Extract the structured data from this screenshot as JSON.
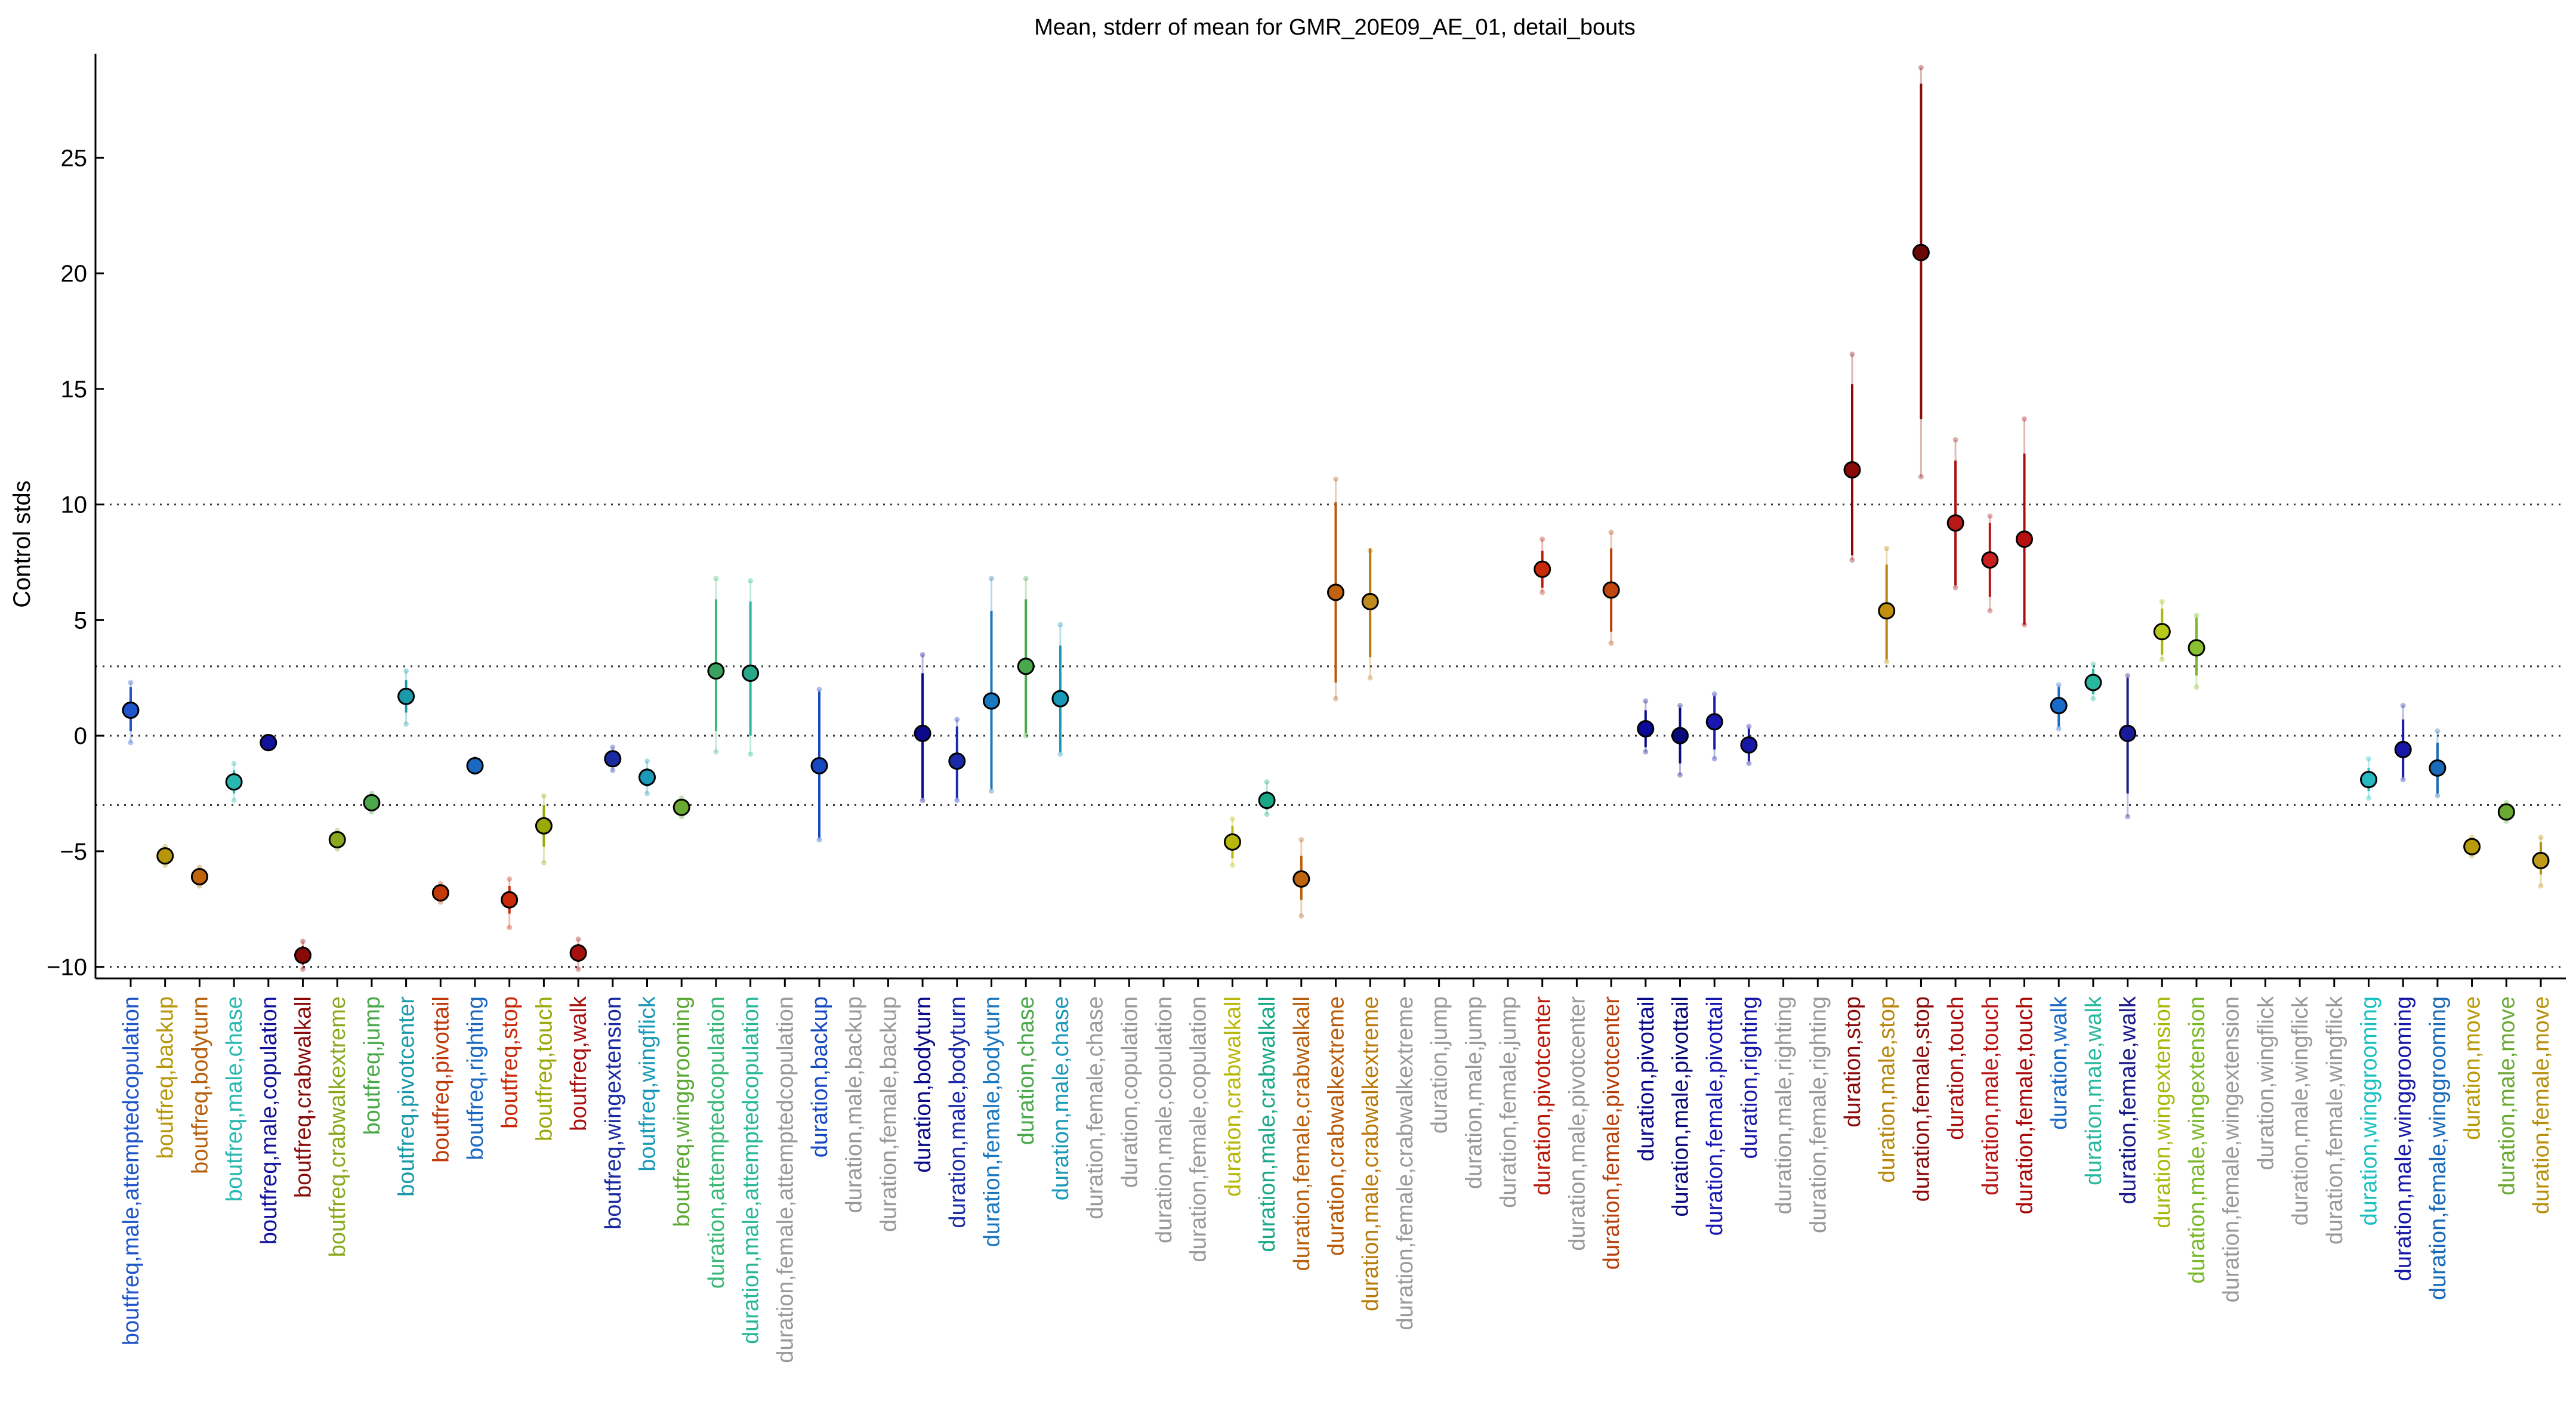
{
  "chart_data": {
    "type": "scatter",
    "title": "Mean, stderr of mean for GMR_20E09_AE_01, detail_bouts",
    "xlabel": "",
    "ylabel": "Control stds",
    "ylim": [
      -10.5,
      29.5
    ],
    "yticks": [
      -10,
      -5,
      0,
      5,
      10,
      15,
      20,
      25
    ],
    "ytick_labels": [
      "−10",
      "−5",
      "0",
      "5",
      "10",
      "15",
      "20",
      "25"
    ],
    "hlines": [
      -10,
      -3,
      0,
      3,
      10
    ],
    "grid": false,
    "legend": "none",
    "points": [
      {
        "label": "boutfreq,male,attemptedcopulation",
        "mean": 1.1,
        "se_lo": 0.2,
        "se_hi": 2.1,
        "ci_lo": -0.3,
        "ci_hi": 2.3,
        "color": "#1f55c8",
        "fill": "#1f55c8"
      },
      {
        "label": "boutfreq,backup",
        "mean": -5.2,
        "se_lo": -5.4,
        "se_hi": -5.0,
        "ci_lo": -5.6,
        "ci_hi": -4.8,
        "color": "#b8960a",
        "fill": "#b8960a"
      },
      {
        "label": "boutfreq,bodyturn",
        "mean": -6.1,
        "se_lo": -6.3,
        "se_hi": -5.9,
        "ci_lo": -6.5,
        "ci_hi": -5.7,
        "color": "#b8600e",
        "fill": "#c0640e"
      },
      {
        "label": "boutfreq,male,chase",
        "mean": -2.0,
        "se_lo": -2.5,
        "se_hi": -1.5,
        "ci_lo": -2.8,
        "ci_hi": -1.2,
        "color": "#28b8b0",
        "fill": "#28b8b0"
      },
      {
        "label": "boutfreq,male,copulation",
        "mean": -0.3,
        "se_lo": -0.4,
        "se_hi": -0.2,
        "ci_lo": -0.5,
        "ci_hi": -0.1,
        "color": "#12129a",
        "fill": "#12129a"
      },
      {
        "label": "boutfreq,crabwalkall",
        "mean": -9.5,
        "se_lo": -9.9,
        "se_hi": -9.1,
        "ci_lo": -10.1,
        "ci_hi": -8.9,
        "color": "#8a0a0a",
        "fill": "#8a0a0a"
      },
      {
        "label": "boutfreq,crabwalkextreme",
        "mean": -4.5,
        "se_lo": -4.7,
        "se_hi": -4.3,
        "ci_lo": -4.9,
        "ci_hi": -4.1,
        "color": "#8aa81e",
        "fill": "#8aa81e"
      },
      {
        "label": "boutfreq,jump",
        "mean": -2.9,
        "se_lo": -3.1,
        "se_hi": -2.7,
        "ci_lo": -3.3,
        "ci_hi": -2.5,
        "color": "#4aa84a",
        "fill": "#4aa84a"
      },
      {
        "label": "boutfreq,pivotcenter",
        "mean": 1.7,
        "se_lo": 1.0,
        "se_hi": 2.4,
        "ci_lo": 0.5,
        "ci_hi": 2.8,
        "color": "#1a9aa8",
        "fill": "#1a9aa8"
      },
      {
        "label": "boutfreq,pivottail",
        "mean": -6.8,
        "se_lo": -7.0,
        "se_hi": -6.6,
        "ci_lo": -7.2,
        "ci_hi": -6.4,
        "color": "#c03a0a",
        "fill": "#c03a0a"
      },
      {
        "label": "boutfreq,righting",
        "mean": -1.3,
        "se_lo": -1.5,
        "se_hi": -1.1,
        "ci_lo": -1.6,
        "ci_hi": -1.0,
        "color": "#1a68c0",
        "fill": "#1a68c0"
      },
      {
        "label": "boutfreq,stop",
        "mean": -7.1,
        "se_lo": -7.7,
        "se_hi": -6.5,
        "ci_lo": -8.3,
        "ci_hi": -6.2,
        "color": "#c82a0a",
        "fill": "#c82a0a"
      },
      {
        "label": "boutfreq,touch",
        "mean": -3.9,
        "se_lo": -4.8,
        "se_hi": -3.0,
        "ci_lo": -5.5,
        "ci_hi": -2.6,
        "color": "#9aa80a",
        "fill": "#9aa80a"
      },
      {
        "label": "boutfreq,walk",
        "mean": -9.4,
        "se_lo": -9.8,
        "se_hi": -9.0,
        "ci_lo": -10.1,
        "ci_hi": -8.8,
        "color": "#a81010",
        "fill": "#a81010"
      },
      {
        "label": "boutfreq,wingextension",
        "mean": -1.0,
        "se_lo": -1.3,
        "se_hi": -0.7,
        "ci_lo": -1.5,
        "ci_hi": -0.5,
        "color": "#1a2aa0",
        "fill": "#1a2aa0"
      },
      {
        "label": "boutfreq,wingflick",
        "mean": -1.8,
        "se_lo": -2.2,
        "se_hi": -1.4,
        "ci_lo": -2.5,
        "ci_hi": -1.1,
        "color": "#1a9ab8",
        "fill": "#1a9ab8"
      },
      {
        "label": "boutfreq,winggrooming",
        "mean": -3.1,
        "se_lo": -3.3,
        "se_hi": -2.9,
        "ci_lo": -3.5,
        "ci_hi": -2.7,
        "color": "#5aa832",
        "fill": "#6aaa32"
      },
      {
        "label": "duration,attemptedcopulation",
        "mean": 2.8,
        "se_lo": 0.2,
        "se_hi": 5.9,
        "ci_lo": -0.7,
        "ci_hi": 6.8,
        "color": "#3ab878",
        "fill": "#3aa060"
      },
      {
        "label": "duration,male,attemptedcopulation",
        "mean": 2.7,
        "se_lo": 0.0,
        "se_hi": 5.8,
        "ci_lo": -0.8,
        "ci_hi": 6.7,
        "color": "#28b898",
        "fill": "#28a888"
      },
      {
        "label": "duration,female,attemptedcopulation",
        "mean": null,
        "color": "#999999"
      },
      {
        "label": "duration,backup",
        "mean": -1.3,
        "se_lo": -4.4,
        "se_hi": 1.9,
        "ci_lo": -4.5,
        "ci_hi": 2.0,
        "color": "#1848c0",
        "fill": "#1848c0"
      },
      {
        "label": "duration,male,backup",
        "mean": null,
        "color": "#999999"
      },
      {
        "label": "duration,female,backup",
        "mean": null,
        "color": "#999999"
      },
      {
        "label": "duration,bodyturn",
        "mean": 0.1,
        "se_lo": -2.7,
        "se_hi": 2.7,
        "ci_lo": -2.8,
        "ci_hi": 3.5,
        "color": "#0a0a8a",
        "fill": "#0a0a8a"
      },
      {
        "label": "duration,male,bodyturn",
        "mean": -1.1,
        "se_lo": -2.7,
        "se_hi": 0.4,
        "ci_lo": -2.8,
        "ci_hi": 0.7,
        "color": "#1a2aa8",
        "fill": "#1a2aa8"
      },
      {
        "label": "duration,female,bodyturn",
        "mean": 1.5,
        "se_lo": -2.3,
        "se_hi": 5.4,
        "ci_lo": -2.4,
        "ci_hi": 6.8,
        "color": "#1a78c0",
        "fill": "#1a78c0"
      },
      {
        "label": "duration,chase",
        "mean": 3.0,
        "se_lo": 0.1,
        "se_hi": 5.9,
        "ci_lo": 0.0,
        "ci_hi": 6.8,
        "color": "#4aa84a",
        "fill": "#4aa84a"
      },
      {
        "label": "duration,male,chase",
        "mean": 1.6,
        "se_lo": -0.7,
        "se_hi": 3.9,
        "ci_lo": -0.8,
        "ci_hi": 4.8,
        "color": "#1a98b8",
        "fill": "#1a98b8"
      },
      {
        "label": "duration,female,chase",
        "mean": null,
        "color": "#999999"
      },
      {
        "label": "duration,copulation",
        "mean": null,
        "color": "#999999"
      },
      {
        "label": "duration,male,copulation",
        "mean": null,
        "color": "#999999"
      },
      {
        "label": "duration,female,copulation",
        "mean": null,
        "color": "#999999"
      },
      {
        "label": "duration,crabwalkall",
        "mean": -4.6,
        "se_lo": -5.3,
        "se_hi": -3.9,
        "ci_lo": -5.6,
        "ci_hi": -3.6,
        "color": "#b8b80a",
        "fill": "#b8b80a"
      },
      {
        "label": "duration,male,crabwalkall",
        "mean": -2.8,
        "se_lo": -3.2,
        "se_hi": -2.4,
        "ci_lo": -3.4,
        "ci_hi": -2.0,
        "color": "#18a888",
        "fill": "#18a888"
      },
      {
        "label": "duration,female,crabwalkall",
        "mean": -6.2,
        "se_lo": -7.1,
        "se_hi": -5.2,
        "ci_lo": -7.8,
        "ci_hi": -4.5,
        "color": "#b8600e",
        "fill": "#c0640e"
      },
      {
        "label": "duration,crabwalkextreme",
        "mean": 6.2,
        "se_lo": 2.3,
        "se_hi": 10.1,
        "ci_lo": 1.6,
        "ci_hi": 11.1,
        "color": "#b85a0a",
        "fill": "#c0620e"
      },
      {
        "label": "duration,male,crabwalkextreme",
        "mean": 5.8,
        "se_lo": 3.4,
        "se_hi": 8.1,
        "ci_lo": 2.5,
        "ci_hi": 8.0,
        "color": "#b87a0a",
        "fill": "#c08a1e"
      },
      {
        "label": "duration,female,crabwalkextreme",
        "mean": null,
        "color": "#999999"
      },
      {
        "label": "duration,jump",
        "mean": null,
        "color": "#999999"
      },
      {
        "label": "duration,male,jump",
        "mean": null,
        "color": "#999999"
      },
      {
        "label": "duration,female,jump",
        "mean": null,
        "color": "#999999"
      },
      {
        "label": "duration,pivotcenter",
        "mean": 7.2,
        "se_lo": 6.4,
        "se_hi": 8.0,
        "ci_lo": 6.2,
        "ci_hi": 8.5,
        "color": "#b81a0a",
        "fill": "#c82a0a"
      },
      {
        "label": "duration,male,pivotcenter",
        "mean": null,
        "color": "#999999"
      },
      {
        "label": "duration,female,pivotcenter",
        "mean": 6.3,
        "se_lo": 4.5,
        "se_hi": 8.1,
        "ci_lo": 4.0,
        "ci_hi": 8.8,
        "color": "#b8400a",
        "fill": "#c0480e"
      },
      {
        "label": "duration,pivottail",
        "mean": 0.3,
        "se_lo": -0.5,
        "se_hi": 1.1,
        "ci_lo": -0.7,
        "ci_hi": 1.5,
        "color": "#0a0a8a",
        "fill": "#0a0a9a"
      },
      {
        "label": "duration,male,pivottail",
        "mean": 0.0,
        "se_lo": -1.2,
        "se_hi": 1.2,
        "ci_lo": -1.7,
        "ci_hi": 1.3,
        "color": "#0a0a7a",
        "fill": "#0a0a7a"
      },
      {
        "label": "duration,female,pivottail",
        "mean": 0.6,
        "se_lo": -0.6,
        "se_hi": 1.7,
        "ci_lo": -1.0,
        "ci_hi": 1.8,
        "color": "#1818b0",
        "fill": "#1818b0"
      },
      {
        "label": "duration,righting",
        "mean": -0.4,
        "se_lo": -1.1,
        "se_hi": 0.3,
        "ci_lo": -1.2,
        "ci_hi": 0.4,
        "color": "#1818a8",
        "fill": "#1818a8"
      },
      {
        "label": "duration,male,righting",
        "mean": null,
        "color": "#999999"
      },
      {
        "label": "duration,female,righting",
        "mean": null,
        "color": "#999999"
      },
      {
        "label": "duration,stop",
        "mean": 11.5,
        "se_lo": 7.8,
        "se_hi": 15.2,
        "ci_lo": 7.6,
        "ci_hi": 16.5,
        "color": "#8a0a0a",
        "fill": "#8a0a0a"
      },
      {
        "label": "duration,male,stop",
        "mean": 5.4,
        "se_lo": 3.3,
        "se_hi": 7.4,
        "ci_lo": 3.2,
        "ci_hi": 8.1,
        "color": "#b8860a",
        "fill": "#c0900e"
      },
      {
        "label": "duration,female,stop",
        "mean": 20.9,
        "se_lo": 13.7,
        "se_hi": 28.2,
        "ci_lo": 11.2,
        "ci_hi": 28.9,
        "color": "#8a0a0a",
        "fill": "#6a0808"
      },
      {
        "label": "duration,touch",
        "mean": 9.2,
        "se_lo": 6.5,
        "se_hi": 11.9,
        "ci_lo": 6.4,
        "ci_hi": 12.8,
        "color": "#a81010",
        "fill": "#b81818"
      },
      {
        "label": "duration,male,touch",
        "mean": 7.6,
        "se_lo": 6.0,
        "se_hi": 9.2,
        "ci_lo": 5.4,
        "ci_hi": 9.5,
        "color": "#b81818",
        "fill": "#c82020"
      },
      {
        "label": "duration,female,touch",
        "mean": 8.5,
        "se_lo": 4.8,
        "se_hi": 12.2,
        "ci_lo": 4.8,
        "ci_hi": 13.7,
        "color": "#a80a0a",
        "fill": "#b81010"
      },
      {
        "label": "duration,walk",
        "mean": 1.3,
        "se_lo": 0.4,
        "se_hi": 2.1,
        "ci_lo": 0.3,
        "ci_hi": 2.2,
        "color": "#1a6ac8",
        "fill": "#1a6ac8"
      },
      {
        "label": "duration,male,walk",
        "mean": 2.3,
        "se_lo": 1.8,
        "se_hi": 2.9,
        "ci_lo": 1.6,
        "ci_hi": 3.1,
        "color": "#28b8a0",
        "fill": "#28b8a0"
      },
      {
        "label": "duration,female,walk",
        "mean": 0.1,
        "se_lo": -2.5,
        "se_hi": 2.5,
        "ci_lo": -3.5,
        "ci_hi": 2.6,
        "color": "#1a1a8a",
        "fill": "#1a1a9a"
      },
      {
        "label": "duration,wingextension",
        "mean": 4.5,
        "se_lo": 3.5,
        "se_hi": 5.5,
        "ci_lo": 3.3,
        "ci_hi": 5.8,
        "color": "#a8b80a",
        "fill": "#b8c81a"
      },
      {
        "label": "duration,male,wingextension",
        "mean": 3.8,
        "se_lo": 2.6,
        "se_hi": 5.1,
        "ci_lo": 2.1,
        "ci_hi": 5.2,
        "color": "#7ab82a",
        "fill": "#8abf32"
      },
      {
        "label": "duration,female,wingextension",
        "mean": null,
        "color": "#999999"
      },
      {
        "label": "duration,wingflick",
        "mean": null,
        "color": "#999999"
      },
      {
        "label": "duration,male,wingflick",
        "mean": null,
        "color": "#999999"
      },
      {
        "label": "duration,female,wingflick",
        "mean": null,
        "color": "#999999"
      },
      {
        "label": "duration,winggrooming",
        "mean": -1.9,
        "se_lo": -2.4,
        "se_hi": -1.4,
        "ci_lo": -2.7,
        "ci_hi": -1.0,
        "color": "#18c0c0",
        "fill": "#28b8c0"
      },
      {
        "label": "duration,male,winggrooming",
        "mean": -0.6,
        "se_lo": -1.8,
        "se_hi": 0.7,
        "ci_lo": -1.9,
        "ci_hi": 1.3,
        "color": "#1818a8",
        "fill": "#1818a8"
      },
      {
        "label": "duration,female,winggrooming",
        "mean": -1.4,
        "se_lo": -2.5,
        "se_hi": -0.3,
        "ci_lo": -2.6,
        "ci_hi": 0.2,
        "color": "#1a6ab8",
        "fill": "#1a6ab8"
      },
      {
        "label": "duration,move",
        "mean": -4.8,
        "se_lo": -5.0,
        "se_hi": -4.6,
        "ci_lo": -5.2,
        "ci_hi": -4.4,
        "color": "#b89a0a",
        "fill": "#b89a0a"
      },
      {
        "label": "duration,male,move",
        "mean": -3.3,
        "se_lo": -3.5,
        "se_hi": -3.1,
        "ci_lo": -3.7,
        "ci_hi": -2.9,
        "color": "#6aaa32",
        "fill": "#6aaa32"
      },
      {
        "label": "duration,female,move",
        "mean": -5.4,
        "se_lo": -6.0,
        "se_hi": -4.6,
        "ci_lo": -6.5,
        "ci_hi": -4.4,
        "color": "#b8900a",
        "fill": "#c09a1a"
      }
    ]
  }
}
